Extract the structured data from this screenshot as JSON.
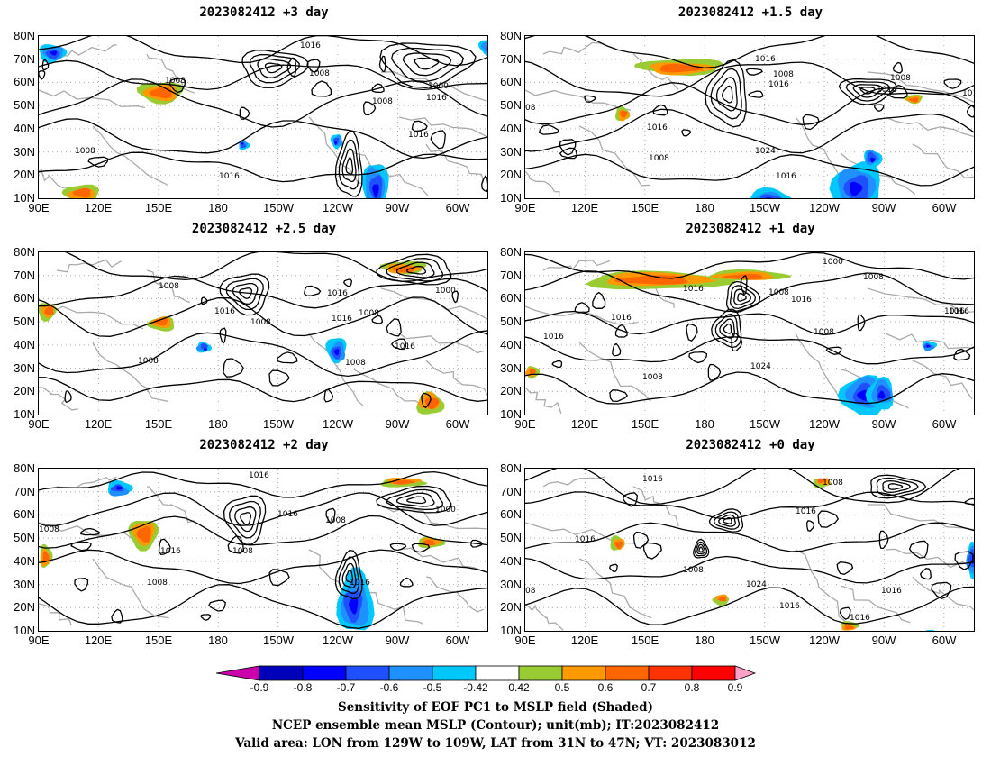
{
  "panels": [
    {
      "title": "2023082412 +3 day",
      "contour_labels": [
        "1016",
        "1008",
        "1008",
        "1008",
        "1000",
        "1016",
        "1016",
        "1016",
        "1008"
      ]
    },
    {
      "title": "2023082412 +1.5 day",
      "contour_labels": [
        "1016",
        "1008",
        "1016",
        "1008",
        "1016",
        "1016",
        "1016",
        "1024",
        "1008",
        "1016",
        "08"
      ]
    },
    {
      "title": "2023082412 +2.5 day",
      "contour_labels": [
        "1008",
        "1016",
        "1008",
        "1016",
        "1016",
        "1008",
        "1000",
        "1016",
        "1008",
        "1008"
      ]
    },
    {
      "title": "2023082412 +1 day",
      "contour_labels": [
        "1000",
        "1008",
        "1016",
        "1008",
        "1016",
        "1016",
        "1016",
        "1008",
        "1016",
        "1024",
        "1008",
        "1016"
      ]
    },
    {
      "title": "2023082412 +2 day",
      "contour_labels": [
        "1016",
        "1016",
        "1008",
        "1000",
        "1016",
        "1008",
        "1008",
        "1016",
        "1008"
      ]
    },
    {
      "title": "2023082412 +0 day",
      "contour_labels": [
        "1016",
        "1008",
        "1016",
        "1016",
        "1008",
        "1024",
        "1016",
        "1016",
        "1016",
        "08"
      ]
    }
  ],
  "axes": {
    "lat_labels": [
      "80N",
      "70N",
      "60N",
      "50N",
      "40N",
      "30N",
      "20N",
      "10N"
    ],
    "lon_labels": [
      "90E",
      "120E",
      "150E",
      "180",
      "150W",
      "120W",
      "90W",
      "60W"
    ]
  },
  "colorbar": {
    "labels": [
      "-0.9",
      "-0.8",
      "-0.7",
      "-0.6",
      "-0.5",
      "-0.42",
      "0.42",
      "0.5",
      "0.6",
      "0.7",
      "0.8",
      "0.9"
    ],
    "colors": [
      "#cc00aa",
      "#0000bb",
      "#0000ff",
      "#1e50ff",
      "#1e90ff",
      "#00c8ff",
      "#ffffff",
      "#99cc33",
      "#ff9900",
      "#ff6600",
      "#ff3300",
      "#ff0000",
      "#ffa0c8"
    ]
  },
  "caption": {
    "line1": "Sensitivity of EOF PC1 to MSLP field (Shaded)",
    "line2": "NCEP ensemble mean MSLP (Contour); unit(mb); IT:2023082412",
    "line3": "Valid area: LON from 129W to 109W, LAT from 31N to 47N; VT: 2023083012"
  }
}
